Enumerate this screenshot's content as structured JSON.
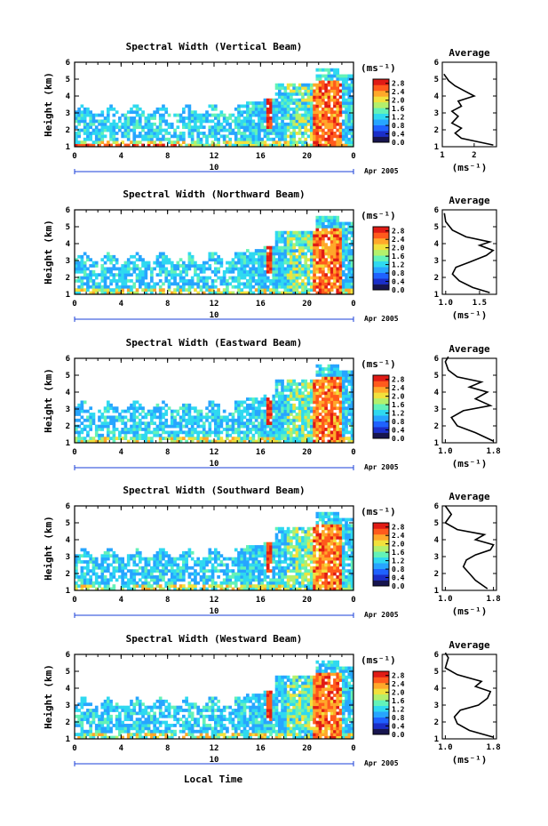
{
  "figure": {
    "x_label": "Local Time",
    "date_label": "Apr 2005",
    "day_label": "10",
    "x_ticks": [
      "0",
      "4",
      "8",
      "12",
      "16",
      "20",
      "0"
    ],
    "y_label": "Height (km)",
    "colorbar_unit": "(ms⁻¹)",
    "avg_title": "Average",
    "avg_unit": "(ms⁻¹)"
  },
  "chart_data": [
    {
      "type": "heatmap",
      "title": "Spectral Width (Vertical Beam)",
      "y_ticks": [
        "1",
        "2",
        "3",
        "4",
        "5",
        "6"
      ],
      "ylim": [
        1,
        6
      ],
      "xlim_hours": [
        0,
        24
      ],
      "colorbar_ticks": [
        "0.0",
        "0.4",
        "0.8",
        "1.2",
        "1.6",
        "2.0",
        "2.4",
        "2.8"
      ],
      "colorbar_range": [
        0,
        3.0
      ],
      "average_profile": {
        "x_ticks": [
          "1",
          "2"
        ],
        "xlim": [
          1,
          2.7
        ],
        "points": [
          [
            2.6,
            1.1
          ],
          [
            1.6,
            1.5
          ],
          [
            1.4,
            1.8
          ],
          [
            1.6,
            2.1
          ],
          [
            1.3,
            2.4
          ],
          [
            1.5,
            2.8
          ],
          [
            1.3,
            3.1
          ],
          [
            1.6,
            3.4
          ],
          [
            1.5,
            3.7
          ],
          [
            2.0,
            4.0
          ],
          [
            1.7,
            4.3
          ],
          [
            1.4,
            4.6
          ],
          [
            1.2,
            4.9
          ],
          [
            1.05,
            5.3
          ]
        ]
      }
    },
    {
      "type": "heatmap",
      "title": "Spectral Width (Northward Beam)",
      "y_ticks": [
        "1",
        "2",
        "3",
        "4",
        "5",
        "6"
      ],
      "ylim": [
        1,
        6
      ],
      "xlim_hours": [
        0,
        24
      ],
      "colorbar_ticks": [
        "0.0",
        "0.4",
        "0.8",
        "1.2",
        "1.6",
        "2.0",
        "2.4",
        "2.8"
      ],
      "colorbar_range": [
        0,
        3.0
      ],
      "average_profile": {
        "x_ticks": [
          "1.0",
          "1.5"
        ],
        "xlim": [
          0.95,
          1.75
        ],
        "points": [
          [
            1.65,
            1.1
          ],
          [
            1.4,
            1.4
          ],
          [
            1.2,
            1.8
          ],
          [
            1.1,
            2.2
          ],
          [
            1.15,
            2.6
          ],
          [
            1.35,
            2.9
          ],
          [
            1.6,
            3.3
          ],
          [
            1.7,
            3.6
          ],
          [
            1.5,
            3.9
          ],
          [
            1.65,
            4.1
          ],
          [
            1.3,
            4.4
          ],
          [
            1.1,
            4.8
          ],
          [
            1.0,
            5.3
          ],
          [
            0.98,
            5.8
          ]
        ]
      }
    },
    {
      "type": "heatmap",
      "title": "Spectral Width (Eastward Beam)",
      "y_ticks": [
        "1",
        "2",
        "3",
        "4",
        "5",
        "6"
      ],
      "ylim": [
        1,
        6
      ],
      "xlim_hours": [
        0,
        24
      ],
      "colorbar_ticks": [
        "0.0",
        "0.4",
        "0.8",
        "1.2",
        "1.6",
        "2.0",
        "2.4",
        "2.8"
      ],
      "colorbar_range": [
        0,
        3.0
      ],
      "average_profile": {
        "x_ticks": [
          "1.0",
          "1.8"
        ],
        "xlim": [
          0.95,
          1.85
        ],
        "points": [
          [
            1.8,
            1.1
          ],
          [
            1.5,
            1.6
          ],
          [
            1.2,
            2.0
          ],
          [
            1.1,
            2.5
          ],
          [
            1.3,
            2.9
          ],
          [
            1.75,
            3.2
          ],
          [
            1.5,
            3.6
          ],
          [
            1.7,
            4.0
          ],
          [
            1.4,
            4.3
          ],
          [
            1.6,
            4.6
          ],
          [
            1.2,
            4.9
          ],
          [
            1.05,
            5.3
          ],
          [
            1.0,
            5.8
          ],
          [
            1.05,
            6.1
          ]
        ]
      }
    },
    {
      "type": "heatmap",
      "title": "Spectral Width (Southward Beam)",
      "y_ticks": [
        "1",
        "2",
        "3",
        "4",
        "5",
        "6"
      ],
      "ylim": [
        1,
        6
      ],
      "xlim_hours": [
        0,
        24
      ],
      "colorbar_ticks": [
        "0.0",
        "0.4",
        "0.8",
        "1.2",
        "1.6",
        "2.0",
        "2.4",
        "2.8"
      ],
      "colorbar_range": [
        0,
        3.0
      ],
      "average_profile": {
        "x_ticks": [
          "1.0",
          "1.8"
        ],
        "xlim": [
          0.95,
          1.85
        ],
        "points": [
          [
            1.7,
            1.1
          ],
          [
            1.5,
            1.6
          ],
          [
            1.4,
            2.0
          ],
          [
            1.3,
            2.4
          ],
          [
            1.35,
            2.8
          ],
          [
            1.5,
            3.1
          ],
          [
            1.75,
            3.4
          ],
          [
            1.8,
            3.7
          ],
          [
            1.5,
            4.0
          ],
          [
            1.65,
            4.3
          ],
          [
            1.2,
            4.6
          ],
          [
            1.0,
            5.0
          ],
          [
            1.1,
            5.5
          ],
          [
            1.0,
            6.0
          ]
        ]
      }
    },
    {
      "type": "heatmap",
      "title": "Spectral Width (Westward Beam)",
      "y_ticks": [
        "1",
        "2",
        "3",
        "4",
        "5",
        "6"
      ],
      "ylim": [
        1,
        6
      ],
      "xlim_hours": [
        0,
        24
      ],
      "colorbar_ticks": [
        "0.0",
        "0.4",
        "0.8",
        "1.2",
        "1.6",
        "2.0",
        "2.4",
        "2.8"
      ],
      "colorbar_range": [
        0,
        3.0
      ],
      "average_profile": {
        "x_ticks": [
          "1.0",
          "1.8"
        ],
        "xlim": [
          0.95,
          1.85
        ],
        "points": [
          [
            1.8,
            1.1
          ],
          [
            1.4,
            1.5
          ],
          [
            1.2,
            1.9
          ],
          [
            1.15,
            2.3
          ],
          [
            1.25,
            2.7
          ],
          [
            1.55,
            3.0
          ],
          [
            1.7,
            3.4
          ],
          [
            1.75,
            3.8
          ],
          [
            1.5,
            4.1
          ],
          [
            1.6,
            4.4
          ],
          [
            1.2,
            4.8
          ],
          [
            1.0,
            5.2
          ],
          [
            1.05,
            5.8
          ],
          [
            1.0,
            6.1
          ]
        ]
      }
    }
  ],
  "colors": {
    "colormap": [
      "#17154f",
      "#1a2ec9",
      "#1f62ff",
      "#27a5ff",
      "#2fd9f0",
      "#63f2b8",
      "#b3f06c",
      "#f2e13c",
      "#ffa82a",
      "#ff5a1c",
      "#e01b15"
    ]
  }
}
